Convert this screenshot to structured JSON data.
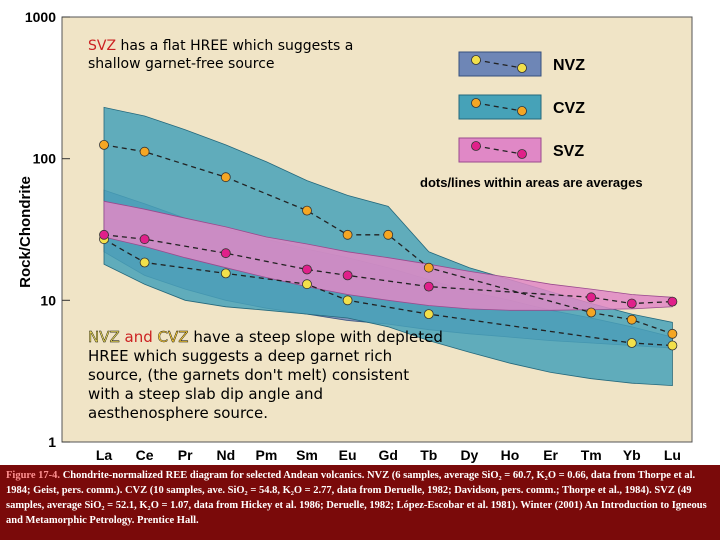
{
  "chart_data": {
    "type": "line",
    "ylabel": "Rock/Chondrite",
    "yscale": "log",
    "ylim": [
      1,
      1000
    ],
    "y_ticks": [
      "1",
      "10",
      "100",
      "1000"
    ],
    "categories": [
      "La",
      "Ce",
      "Pr",
      "Nd",
      "Pm",
      "Sm",
      "Eu",
      "Gd",
      "Tb",
      "Dy",
      "Ho",
      "Er",
      "Tm",
      "Yb",
      "Lu"
    ],
    "legend_position": "top-right",
    "legend_note": "dots/lines within areas are averages",
    "series": [
      {
        "name": "NVZ",
        "color": "#f2e04a",
        "band_upper": [
          60,
          48,
          38,
          32,
          27,
          23,
          20,
          17,
          14,
          11.5,
          10,
          8.5,
          7.5,
          6.5,
          5.5
        ],
        "band_lower": [
          22,
          15,
          12,
          10,
          8.8,
          8,
          7.2,
          6.8,
          6.2,
          5.8,
          5.5,
          5.2,
          5,
          4.8,
          4.6
        ],
        "values": [
          27,
          18.5,
          null,
          15.5,
          null,
          13,
          10,
          null,
          8,
          null,
          null,
          null,
          null,
          5,
          4.8
        ]
      },
      {
        "name": "CVZ",
        "color": "#f5a623",
        "band_upper": [
          230,
          200,
          160,
          125,
          95,
          70,
          55,
          46,
          22,
          17,
          14,
          11.5,
          9.5,
          8,
          7
        ],
        "band_lower": [
          18,
          13,
          10,
          9,
          8.5,
          8,
          7.5,
          6.5,
          5.2,
          4.3,
          3.6,
          3.1,
          2.8,
          2.6,
          2.5
        ],
        "values": [
          125,
          112,
          null,
          74,
          null,
          43,
          29,
          29,
          17,
          null,
          null,
          null,
          8.2,
          7.3,
          5.8
        ]
      },
      {
        "name": "SVZ",
        "color": "#e0208a",
        "band_upper": [
          50,
          44,
          38,
          33,
          28,
          25,
          22,
          20,
          18,
          16,
          14.5,
          13,
          12,
          11,
          10.5
        ],
        "band_lower": [
          28,
          24,
          20,
          17,
          14.5,
          12.5,
          11,
          10,
          9.2,
          8.7,
          8.5,
          8.5,
          8.6,
          8.7,
          9
        ],
        "values": [
          29,
          27,
          null,
          21.5,
          null,
          16.5,
          15,
          null,
          12.5,
          null,
          null,
          null,
          10.5,
          9.5,
          9.8
        ]
      }
    ]
  },
  "annotations": {
    "top": {
      "svz": "SVZ",
      "text": " has a flat  HREE which suggests a shallow garnet-free source"
    },
    "bottom": {
      "nvz": "NVZ",
      "and": " and ",
      "cvz": "CVZ",
      "text": " have a steep slope with depleted HREE which suggests a deep garnet rich source, (the garnets don't melt) consistent with a steep slab dip angle  and aesthenosphere source."
    }
  },
  "caption": {
    "fig": "Figure 17-4.",
    "text": " Chondrite-normalized REE diagram for selected Andean volcanics. NVZ (6 samples, average SiO₂ = 60.7, K₂O = 0.66, data from Thorpe et al. 1984; Geist, pers. comm.). CVZ (10 samples, ave. SiO₂ = 54.8, K₂O = 2.77, data from Deruelle, 1982; Davidson, pers. comm.; Thorpe et al., 1984). SVZ (49 samples, average SiO₂ = 52.1, K₂O = 1.07, data from Hickey et al. 1986; Deruelle, 1982; López-Escobar et al. 1981). Winter (2001) An Introduction to Igneous and Metamorphic Petrology. Prentice Hall."
  }
}
